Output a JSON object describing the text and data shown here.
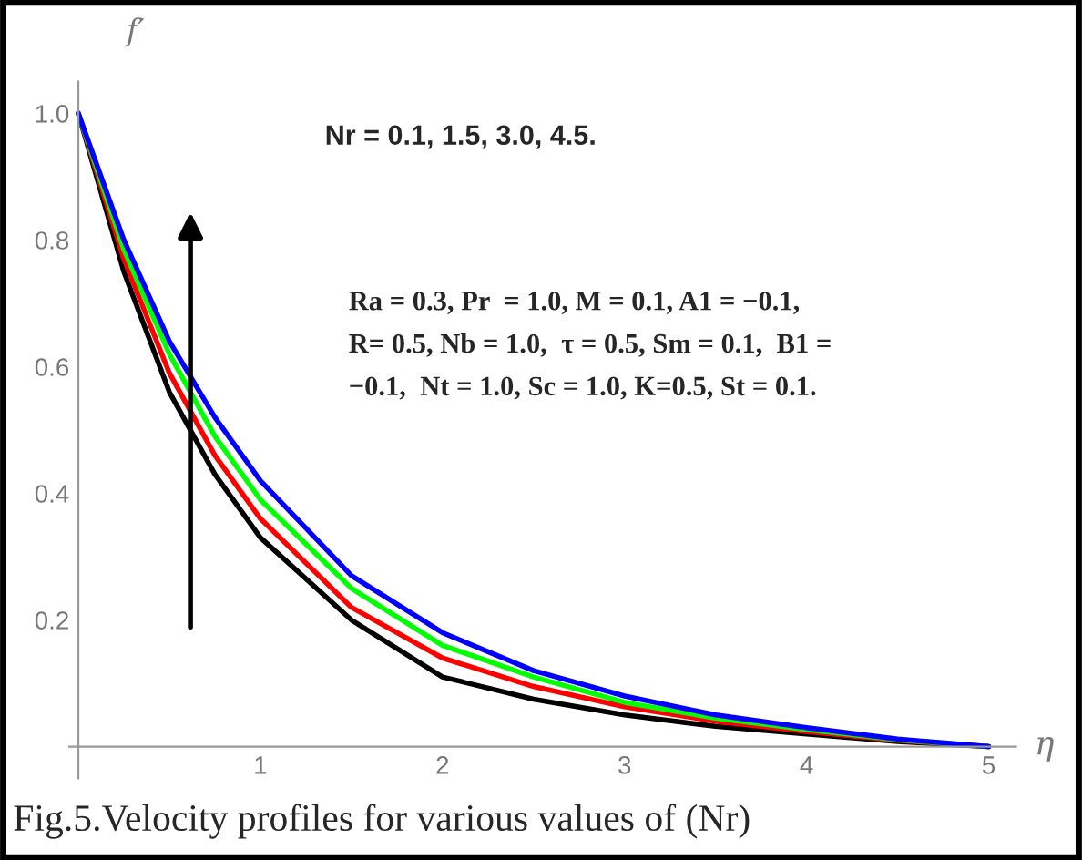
{
  "chart_data": {
    "type": "line",
    "xlabel": "η",
    "ylabel": "f′",
    "x": [
      0,
      0.25,
      0.5,
      0.75,
      1,
      1.5,
      2,
      2.5,
      3,
      3.5,
      4,
      4.5,
      5
    ],
    "series": [
      {
        "color": "#000000",
        "values": [
          1,
          0.75,
          0.56,
          0.43,
          0.33,
          0.2,
          0.11,
          0.075,
          0.05,
          0.032,
          0.02,
          0.008,
          0
        ]
      },
      {
        "color": "#ff0000",
        "values": [
          1,
          0.77,
          0.59,
          0.46,
          0.36,
          0.22,
          0.14,
          0.095,
          0.063,
          0.04,
          0.024,
          0.01,
          0
        ]
      },
      {
        "color": "#00ff00",
        "values": [
          1,
          0.785,
          0.62,
          0.49,
          0.39,
          0.25,
          0.16,
          0.11,
          0.07,
          0.045,
          0.027,
          0.011,
          0
        ]
      },
      {
        "color": "#0000ff",
        "values": [
          1,
          0.8,
          0.64,
          0.52,
          0.42,
          0.27,
          0.18,
          0.12,
          0.08,
          0.05,
          0.03,
          0.012,
          0
        ]
      }
    ],
    "xlim": [
      -0.05,
      5.15
    ],
    "ylim": [
      -0.05,
      1.05
    ],
    "xticks": [
      1,
      2,
      3,
      4,
      5
    ],
    "yticks": [
      0.2,
      0.4,
      0.6,
      0.8,
      {
        "value": 1,
        "label": "1.0"
      }
    ],
    "grid": false,
    "legend": false,
    "marker": "none",
    "line_style": "solid",
    "annotations": [
      "Nr = 0.1, 1.5, 3.0, 4.5.",
      "Ra = 0.3, Pr  = 1.0, M = 0.1, A1 = −0.1,\nR= 0.5, Nb = 1.0,  τ = 0.5, Sm = 0.1,  B1 =\n−0.1,  Nt = 1.0, Sc = 1.0, K=0.5, St = 0.1.",
      "Fig.5.Velocity profiles for various values of (Nr)"
    ]
  }
}
